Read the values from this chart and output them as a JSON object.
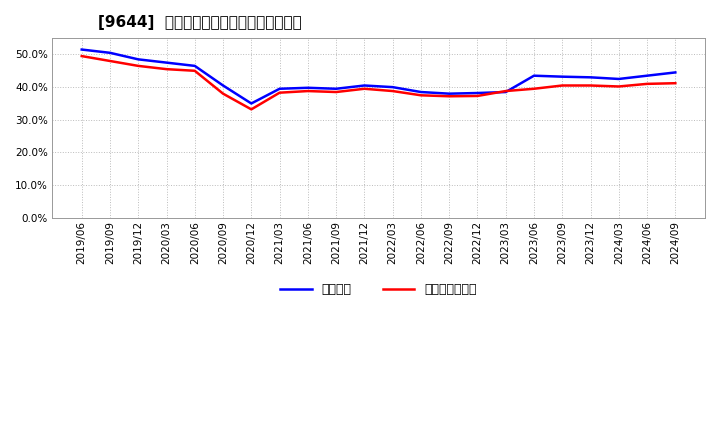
{
  "title": "[9644]  固定比率、固定長期適合率の推移",
  "legend1": "固定比率",
  "legend2": "固定長期適合率",
  "color1": "#0000ff",
  "color2": "#ff0000",
  "background": "#ffffff",
  "grid_color": "#bbbbbb",
  "x_labels": [
    "2019/06",
    "2019/09",
    "2019/12",
    "2020/03",
    "2020/06",
    "2020/09",
    "2020/12",
    "2021/03",
    "2021/06",
    "2021/09",
    "2021/12",
    "2022/03",
    "2022/06",
    "2022/09",
    "2022/12",
    "2023/03",
    "2023/06",
    "2023/09",
    "2023/12",
    "2024/03",
    "2024/06",
    "2024/09"
  ],
  "series1": [
    51.5,
    50.5,
    48.5,
    47.5,
    46.5,
    40.5,
    35.0,
    39.5,
    39.8,
    39.5,
    40.5,
    40.0,
    38.5,
    38.0,
    38.2,
    38.5,
    43.5,
    43.2,
    43.0,
    42.5,
    43.5,
    44.5
  ],
  "series2": [
    49.5,
    48.0,
    46.5,
    45.5,
    45.0,
    38.0,
    33.2,
    38.3,
    38.8,
    38.5,
    39.5,
    38.8,
    37.5,
    37.2,
    37.3,
    38.8,
    39.5,
    40.5,
    40.5,
    40.2,
    41.0,
    41.2
  ],
  "ylim": [
    0.0,
    55.0
  ],
  "yticks": [
    0.0,
    10.0,
    20.0,
    30.0,
    40.0,
    50.0
  ],
  "title_fontsize": 11,
  "tick_fontsize": 7.5,
  "legend_fontsize": 9
}
